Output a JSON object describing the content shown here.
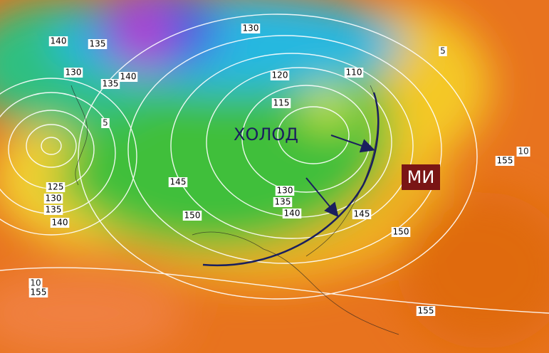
{
  "contour_labels": [
    140,
    135,
    130,
    130,
    140,
    135,
    120,
    110,
    115,
    125,
    130,
    135,
    140,
    145,
    150,
    130,
    135,
    140,
    145,
    150,
    155,
    155,
    155
  ],
  "isotherm_labels": [
    5,
    5,
    10,
    10
  ],
  "annotation": "ХОЛОД",
  "badge": "МИ"
}
